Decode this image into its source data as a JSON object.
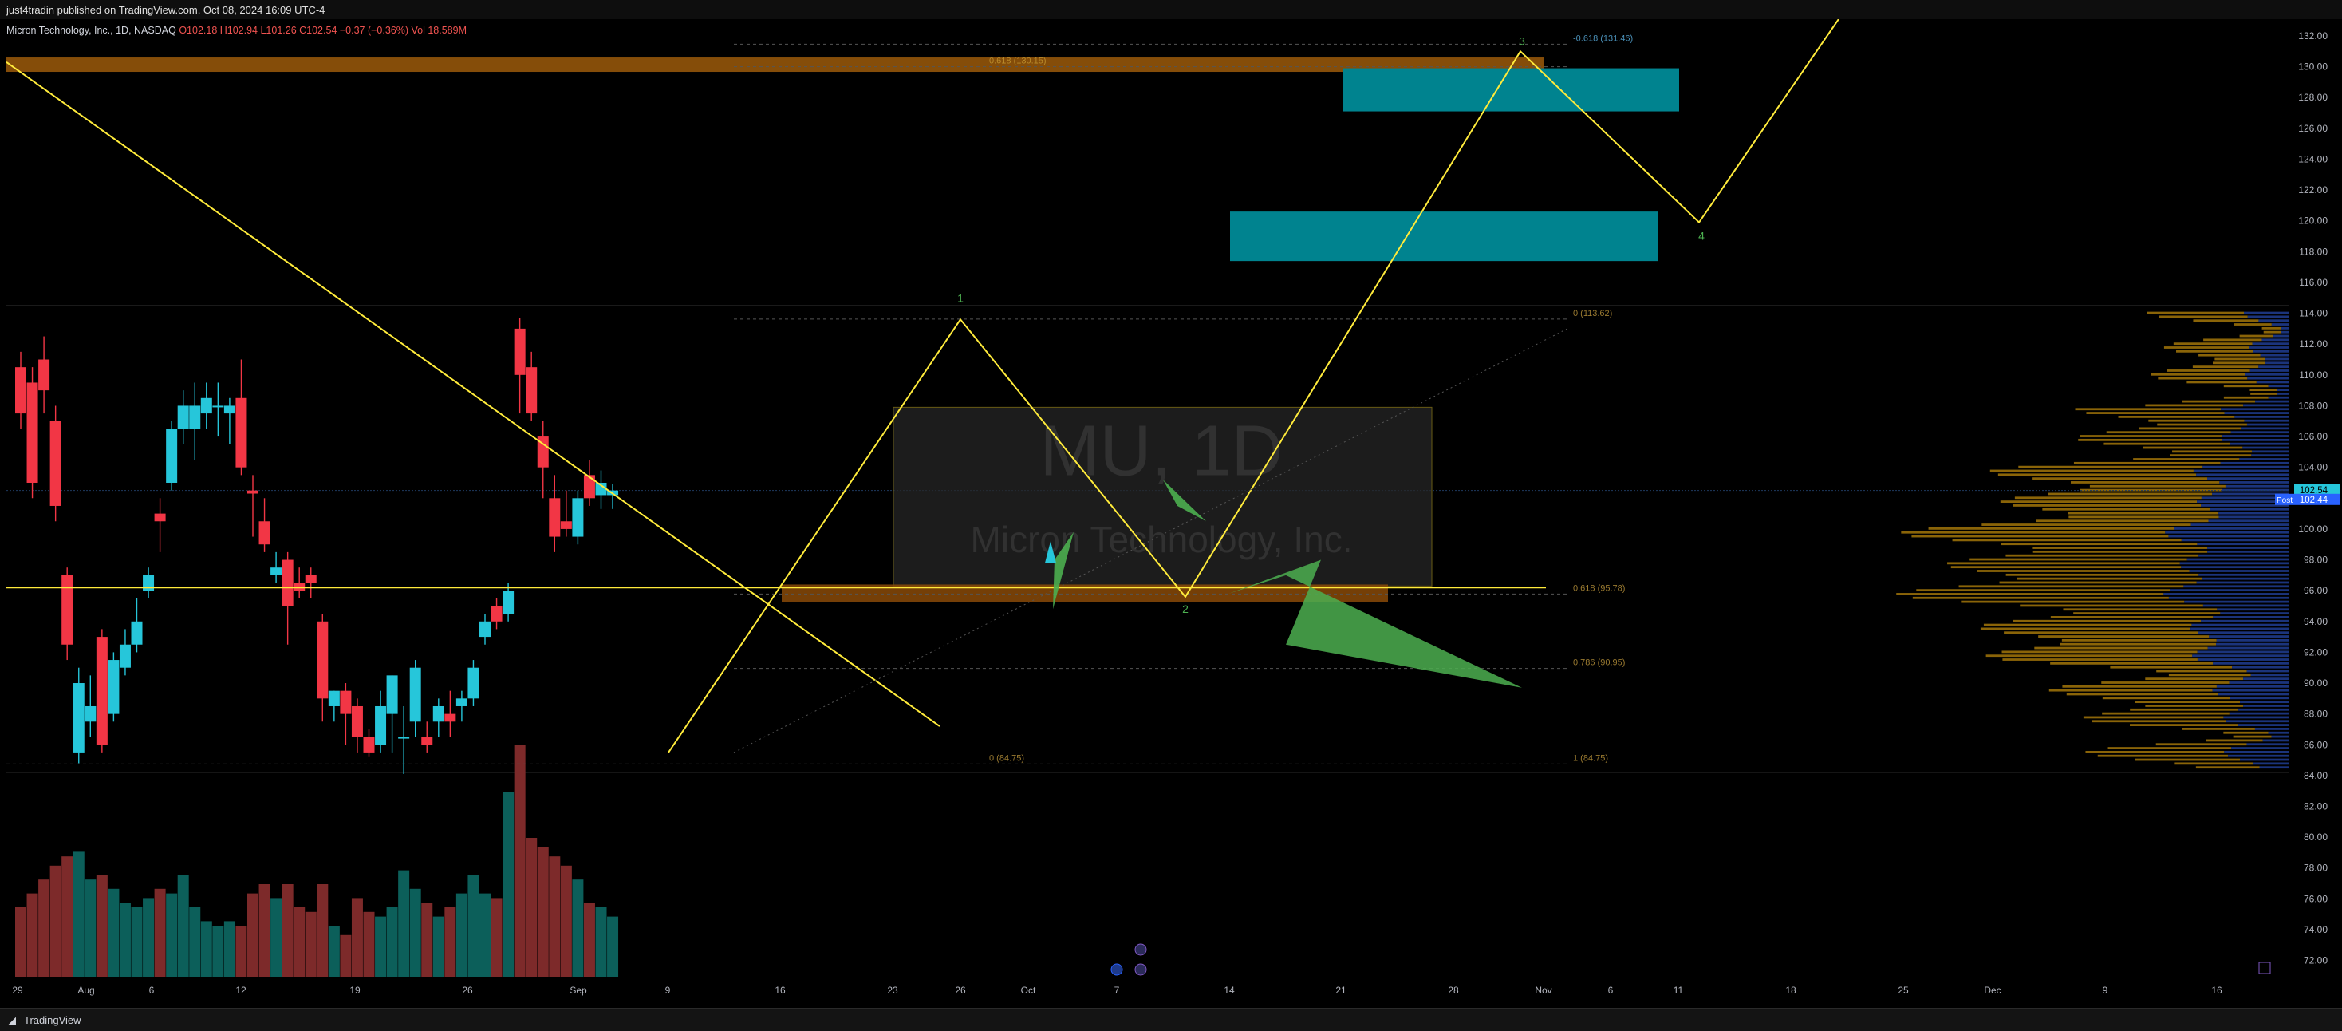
{
  "header": {
    "published_line": "just4tradin published on TradingView.com, Oct 08, 2024 16:09 UTC-4"
  },
  "legend": {
    "symbol": "Micron Technology, Inc., 1D, NASDAQ",
    "ohlc": "O102.18 H102.94 L101.26 C102.54 −0.37 (−0.36%) Vol 18.589M"
  },
  "footer": {
    "logo_icon": "tradingview-logo-icon",
    "brand": "TradingView"
  },
  "colors": {
    "up": "#26c6da",
    "down": "#f23645",
    "vol_up": "#0c5f5a",
    "vol_down": "#7d2a2a",
    "line": "#ffeb3b",
    "fib": "#c79a3c",
    "box": "#00838f",
    "arrow": "#4caf50",
    "profile_up": "#b8860b",
    "profile_down": "#1e3a8a",
    "price_tag": "#26c6da",
    "post_tag": "#2962ff"
  },
  "watermark": {
    "ticker": "MU, 1D",
    "name": "Micron Technology, Inc."
  },
  "chart_data": {
    "type": "candlestick",
    "title": "Micron Technology, Inc., 1D, NASDAQ",
    "y_axis": {
      "ticks": [
        "132.00",
        "130.00",
        "128.00",
        "126.00",
        "124.00",
        "122.00",
        "120.00",
        "118.00",
        "116.00",
        "114.00",
        "112.00",
        "110.00",
        "108.00",
        "106.00",
        "104.00",
        "102.00",
        "100.00",
        "98.00",
        "96.00",
        "94.00",
        "92.00",
        "90.00",
        "88.00",
        "86.00",
        "84.00",
        "82.00",
        "80.00",
        "78.00",
        "76.00",
        "74.00",
        "72.00"
      ],
      "range": [
        71,
        133.4
      ]
    },
    "x_axis": {
      "labels": [
        "29",
        "Aug",
        "6",
        "12",
        "19",
        "26",
        "Sep",
        "9",
        "16",
        "23",
        "26",
        "Oct",
        "7",
        "14",
        "21",
        "28",
        "Nov",
        "6",
        "11",
        "18",
        "25",
        "Dec",
        "9",
        "16"
      ]
    },
    "price_labels": {
      "last": "102.54",
      "post_label": "Post",
      "post": "102.44"
    },
    "candles": [
      {
        "d": "Jul 29",
        "o": 110.5,
        "h": 111.5,
        "l": 106.5,
        "c": 107.5
      },
      {
        "d": "Jul 30",
        "o": 109.5,
        "h": 110.5,
        "l": 102.0,
        "c": 103.0
      },
      {
        "d": "Jul 31",
        "o": 111.0,
        "h": 112.5,
        "l": 107.5,
        "c": 109.0
      },
      {
        "d": "Aug 1",
        "o": 107.0,
        "h": 108.0,
        "l": 100.5,
        "c": 101.5
      },
      {
        "d": "Aug 2",
        "o": 97.0,
        "h": 97.5,
        "l": 91.5,
        "c": 92.5
      },
      {
        "d": "Aug 5",
        "o": 85.5,
        "h": 91.0,
        "l": 84.8,
        "c": 90.0
      },
      {
        "d": "Aug 6",
        "o": 87.5,
        "h": 90.5,
        "l": 86.5,
        "c": 88.5
      },
      {
        "d": "Aug 7",
        "o": 93.0,
        "h": 93.5,
        "l": 85.5,
        "c": 86.0
      },
      {
        "d": "Aug 8",
        "o": 88.0,
        "h": 92.0,
        "l": 87.5,
        "c": 91.5
      },
      {
        "d": "Aug 9",
        "o": 91.0,
        "h": 93.5,
        "l": 90.5,
        "c": 92.5
      },
      {
        "d": "Aug 12",
        "o": 92.5,
        "h": 95.5,
        "l": 92.0,
        "c": 94.0
      },
      {
        "d": "Aug 13",
        "o": 96.0,
        "h": 97.5,
        "l": 95.5,
        "c": 97.0
      },
      {
        "d": "Aug 14",
        "o": 101.0,
        "h": 102.0,
        "l": 98.5,
        "c": 100.5
      },
      {
        "d": "Aug 15",
        "o": 103.0,
        "h": 107.0,
        "l": 102.5,
        "c": 106.5
      },
      {
        "d": "Aug 16",
        "o": 106.5,
        "h": 109.0,
        "l": 105.5,
        "c": 108.0
      },
      {
        "d": "Aug 19",
        "o": 106.5,
        "h": 109.5,
        "l": 104.5,
        "c": 108.0
      },
      {
        "d": "Aug 20",
        "o": 107.5,
        "h": 109.5,
        "l": 106.5,
        "c": 108.5
      },
      {
        "d": "Aug 21",
        "o": 108.0,
        "h": 109.5,
        "l": 106.0,
        "c": 108.0
      },
      {
        "d": "Aug 22",
        "o": 107.5,
        "h": 108.5,
        "l": 105.5,
        "c": 108.0
      },
      {
        "d": "Aug 23",
        "o": 108.5,
        "h": 111.0,
        "l": 103.5,
        "c": 104.0
      },
      {
        "d": "Aug 26",
        "o": 102.5,
        "h": 103.5,
        "l": 99.5,
        "c": 102.3
      },
      {
        "d": "Aug 27",
        "o": 100.5,
        "h": 102.0,
        "l": 98.5,
        "c": 99.0
      },
      {
        "d": "Aug 28",
        "o": 97.0,
        "h": 98.5,
        "l": 96.5,
        "c": 97.5
      },
      {
        "d": "Aug 29",
        "o": 98.0,
        "h": 98.5,
        "l": 92.5,
        "c": 95.0
      },
      {
        "d": "Aug 30",
        "o": 96.5,
        "h": 97.5,
        "l": 95.5,
        "c": 96.0
      },
      {
        "d": "Sep 3",
        "o": 97.0,
        "h": 97.5,
        "l": 95.5,
        "c": 96.5
      },
      {
        "d": "Sep 4",
        "o": 94.0,
        "h": 94.5,
        "l": 87.5,
        "c": 89.0
      },
      {
        "d": "Sep 5",
        "o": 88.5,
        "h": 89.5,
        "l": 87.5,
        "c": 89.5
      },
      {
        "d": "Sep 6",
        "o": 89.5,
        "h": 90.0,
        "l": 86.0,
        "c": 88.0
      },
      {
        "d": "Sep 9",
        "o": 88.5,
        "h": 89.0,
        "l": 85.5,
        "c": 86.5
      },
      {
        "d": "Sep 10",
        "o": 86.5,
        "h": 87.0,
        "l": 85.2,
        "c": 85.5
      },
      {
        "d": "Sep 11",
        "o": 86.0,
        "h": 89.5,
        "l": 85.5,
        "c": 88.5
      },
      {
        "d": "Sep 12",
        "o": 88.0,
        "h": 90.5,
        "l": 85.5,
        "c": 90.5
      },
      {
        "d": "Sep 13",
        "o": 86.5,
        "h": 88.5,
        "l": 84.1,
        "c": 86.5
      },
      {
        "d": "Sep 16",
        "o": 87.5,
        "h": 91.5,
        "l": 86.5,
        "c": 91.0
      },
      {
        "d": "Sep 17",
        "o": 86.5,
        "h": 87.5,
        "l": 85.5,
        "c": 86.0
      },
      {
        "d": "Sep 18",
        "o": 87.5,
        "h": 89.0,
        "l": 86.5,
        "c": 88.5
      },
      {
        "d": "Sep 19",
        "o": 88.0,
        "h": 89.5,
        "l": 86.5,
        "c": 87.5
      },
      {
        "d": "Sep 20",
        "o": 88.5,
        "h": 89.5,
        "l": 87.5,
        "c": 89.0
      },
      {
        "d": "Sep 23",
        "o": 89.0,
        "h": 91.5,
        "l": 88.5,
        "c": 91.0
      },
      {
        "d": "Sep 24",
        "o": 93.0,
        "h": 94.5,
        "l": 92.5,
        "c": 94.0
      },
      {
        "d": "Sep 25",
        "o": 95.0,
        "h": 95.5,
        "l": 93.5,
        "c": 94.0
      },
      {
        "d": "Sep 26",
        "o": 94.5,
        "h": 96.5,
        "l": 94.0,
        "c": 96.0
      },
      {
        "d": "Sep 27",
        "o": 113.0,
        "h": 113.7,
        "l": 107.5,
        "c": 110.0
      },
      {
        "d": "Sep 30",
        "o": 110.5,
        "h": 111.5,
        "l": 107.0,
        "c": 107.5
      },
      {
        "d": "Oct 1",
        "o": 106.0,
        "h": 107.0,
        "l": 102.0,
        "c": 104.0
      },
      {
        "d": "Oct 2",
        "o": 102.0,
        "h": 103.5,
        "l": 98.5,
        "c": 99.5
      },
      {
        "d": "Oct 3",
        "o": 100.5,
        "h": 102.5,
        "l": 99.5,
        "c": 100.0
      },
      {
        "d": "Oct 4",
        "o": 99.5,
        "h": 102.5,
        "l": 99.0,
        "c": 102.0
      },
      {
        "d": "Oct 7",
        "o": 103.5,
        "h": 104.5,
        "l": 101.5,
        "c": 102.0
      },
      {
        "d": "Oct 8",
        "o": 102.2,
        "h": 103.8,
        "l": 101.3,
        "c": 103.0
      },
      {
        "d": "Oct 9",
        "o": 102.2,
        "h": 102.9,
        "l": 101.3,
        "c": 102.5
      }
    ],
    "volume_relative": [
      0.3,
      0.36,
      0.42,
      0.48,
      0.52,
      0.54,
      0.42,
      0.44,
      0.38,
      0.32,
      0.3,
      0.34,
      0.38,
      0.36,
      0.44,
      0.3,
      0.24,
      0.22,
      0.24,
      0.22,
      0.36,
      0.4,
      0.34,
      0.4,
      0.3,
      0.28,
      0.4,
      0.22,
      0.18,
      0.34,
      0.28,
      0.26,
      0.3,
      0.46,
      0.38,
      0.32,
      0.26,
      0.3,
      0.36,
      0.44,
      0.36,
      0.34,
      0.8,
      1.0,
      0.6,
      0.56,
      0.52,
      0.48,
      0.42,
      0.32,
      0.3,
      0.26
    ],
    "annotations": {
      "fib_labels": [
        "-0.618 (131.46)",
        "0.618 (130.15)",
        "0 (113.62)",
        "0.618 (95.78)",
        "0.786 (90.95)",
        "1 (84.75)",
        "0 (84.75)"
      ],
      "wave_labels": [
        "1",
        "2",
        "3",
        "4"
      ]
    }
  }
}
